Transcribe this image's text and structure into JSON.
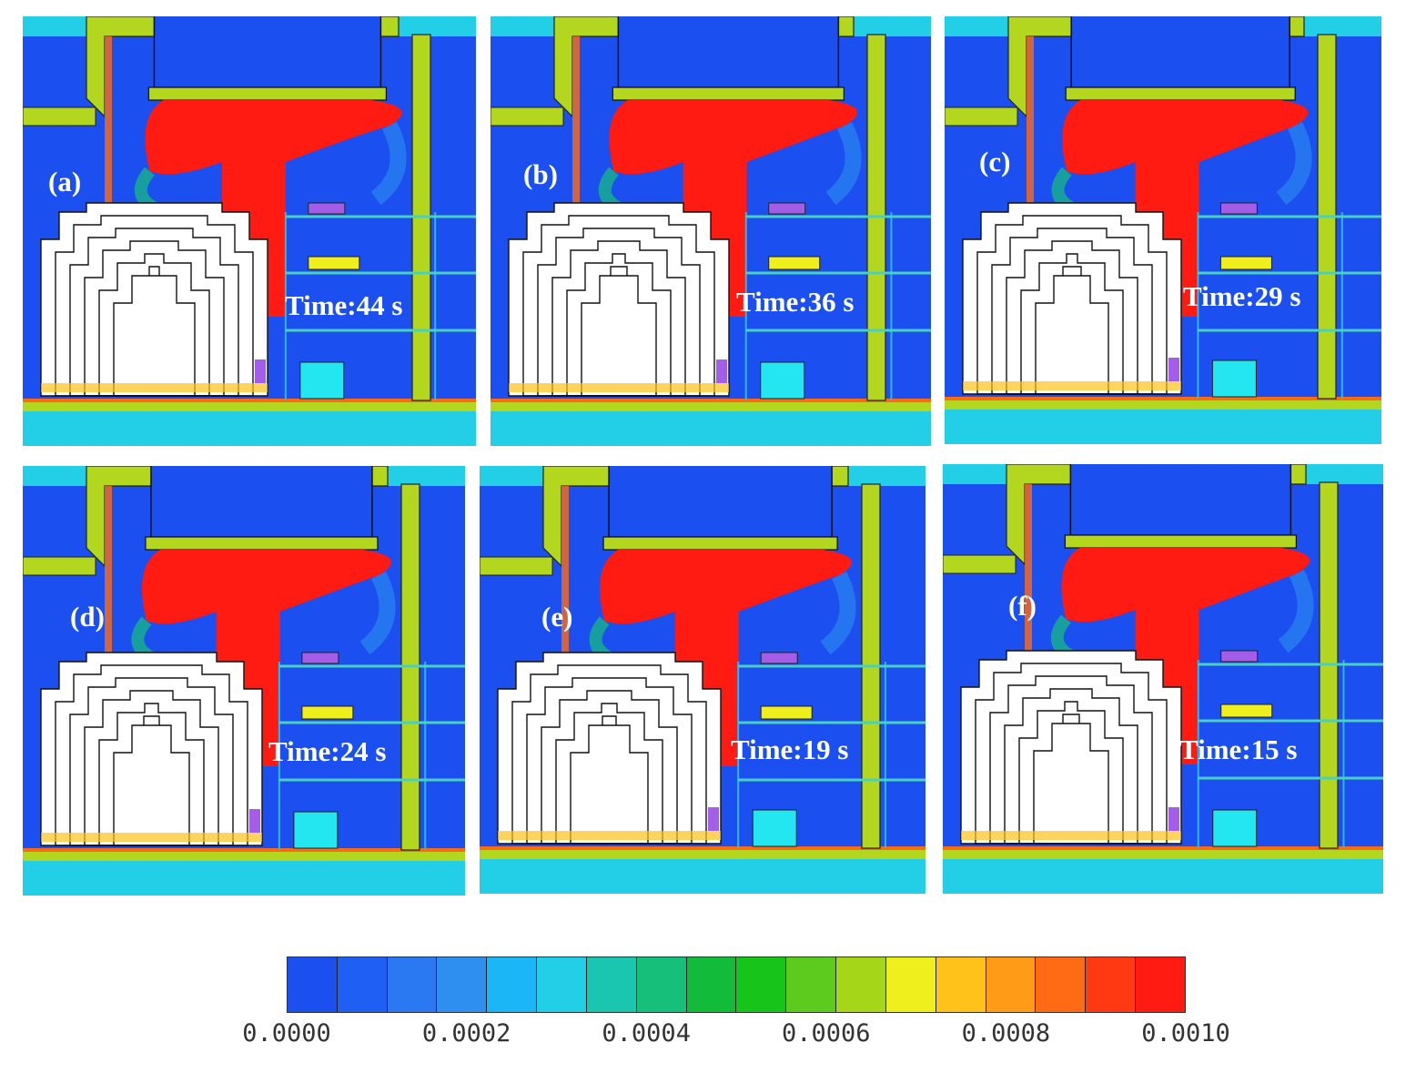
{
  "panels": [
    {
      "label": "(a)",
      "time": "Time:44 s"
    },
    {
      "label": "(b)",
      "time": "Time:36 s"
    },
    {
      "label": "(c)",
      "time": "Time:29 s"
    },
    {
      "label": "(d)",
      "time": "Time:24 s"
    },
    {
      "label": "(e)",
      "time": "Time:19 s"
    },
    {
      "label": "(f)",
      "time": "Time:15 s"
    }
  ],
  "colorbar": {
    "colors": [
      "#1b4ff0",
      "#1f5ff3",
      "#2a79f2",
      "#2f8ff0",
      "#1ab6f5",
      "#23cfe6",
      "#1ac6b0",
      "#16c07a",
      "#12bb3a",
      "#16c41a",
      "#5ccb1d",
      "#a6d618",
      "#f0ef1e",
      "#ffc21a",
      "#ff9b16",
      "#ff6a14",
      "#ff3a13",
      "#ff1a12"
    ],
    "ticks": [
      "0.0000",
      "0.0002",
      "0.0004",
      "0.0006",
      "0.0008",
      "0.0010"
    ]
  }
}
